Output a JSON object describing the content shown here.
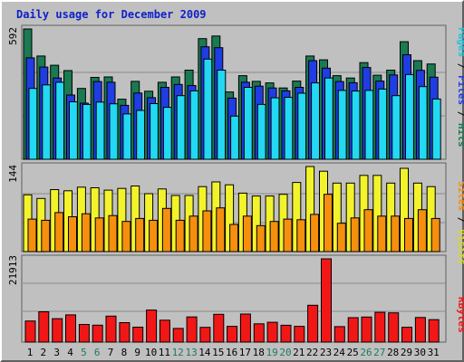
{
  "chart_data": {
    "type": "bar",
    "title": "Daily usage for December 2009",
    "days": [
      "1",
      "2",
      "3",
      "4",
      "5",
      "6",
      "7",
      "8",
      "9",
      "10",
      "11",
      "12",
      "13",
      "14",
      "15",
      "16",
      "17",
      "18",
      "19",
      "20",
      "21",
      "22",
      "23",
      "24",
      "25",
      "26",
      "27",
      "28",
      "29",
      "30",
      "31"
    ],
    "weekend_days": [
      "5",
      "6",
      "12",
      "13",
      "19",
      "20",
      "26",
      "27"
    ],
    "panels": [
      {
        "id": "pages-files-hits",
        "ymax_label": "592",
        "ymax": 592,
        "side_labels": [
          "Pages",
          "Files",
          "Hits"
        ],
        "series": [
          {
            "name": "Hits",
            "values": [
              592,
              469,
              427,
              403,
              322,
              372,
              374,
              273,
              354,
              309,
              350,
              374,
              405,
              548,
              560,
              306,
              380,
              354,
              347,
              324,
              355,
              469,
              452,
              380,
              369,
              439,
              382,
              405,
              534,
              448,
              433
            ]
          },
          {
            "name": "Files",
            "values": [
              461,
              419,
              369,
              292,
              255,
              353,
              350,
              245,
              301,
              280,
              327,
              340,
              335,
              511,
              507,
              278,
              350,
              332,
              324,
              311,
              327,
              448,
              414,
              353,
              348,
              417,
              355,
              383,
              475,
              404,
              373
            ]
          },
          {
            "name": "Pages",
            "values": [
              322,
              338,
              350,
              261,
              249,
              260,
              252,
              206,
              222,
              253,
              236,
              289,
              311,
              455,
              405,
              196,
              327,
              249,
              279,
              281,
              300,
              347,
              369,
              313,
              310,
              313,
              319,
              289,
              385,
              330,
              274
            ]
          }
        ]
      },
      {
        "id": "visits-sites",
        "ymax_label": "144",
        "ymax": 144,
        "side_labels": [
          "Sites",
          "Visits"
        ],
        "series": [
          {
            "name": "Visits",
            "values": [
              96,
              90,
              105,
              103,
              109,
              108,
              104,
              107,
              111,
              98,
              106,
              95,
              95,
              110,
              118,
              113,
              99,
              94,
              94,
              97,
              117,
              144,
              136,
              116,
              116,
              129,
              129,
              116,
              141,
              116,
              110
            ]
          },
          {
            "name": "Sites",
            "values": [
              55,
              53,
              66,
              59,
              64,
              57,
              61,
              51,
              56,
              53,
              73,
              53,
              60,
              69,
              74,
              46,
              60,
              44,
              51,
              55,
              54,
              63,
              97,
              48,
              57,
              71,
              60,
              60,
              56,
              71,
              56
            ]
          }
        ]
      },
      {
        "id": "kbytes",
        "ymax_label": "21913",
        "ymax": 21913,
        "side_labels": [
          "KBytes"
        ],
        "series": [
          {
            "name": "KBytes",
            "values": [
              5560,
              7980,
              6170,
              7180,
              4640,
              4460,
              6830,
              5120,
              3930,
              8430,
              5760,
              3590,
              6630,
              3890,
              7320,
              4150,
              7380,
              4800,
              5220,
              4430,
              4150,
              9690,
              21913,
              4080,
              6420,
              6600,
              7840,
              7700,
              3900,
              6470,
              5910
            ]
          }
        ]
      }
    ],
    "colors": {
      "Hits": "#1a7a52",
      "Files": "#1f3de2",
      "Pages": "#22d8f3",
      "Visits": "#f3f32b",
      "Sites": "#f58f0d",
      "KBytes": "#f21717",
      "title": "#1020c8",
      "weekday": "#000000",
      "weekend": "#1c7a5a"
    }
  }
}
